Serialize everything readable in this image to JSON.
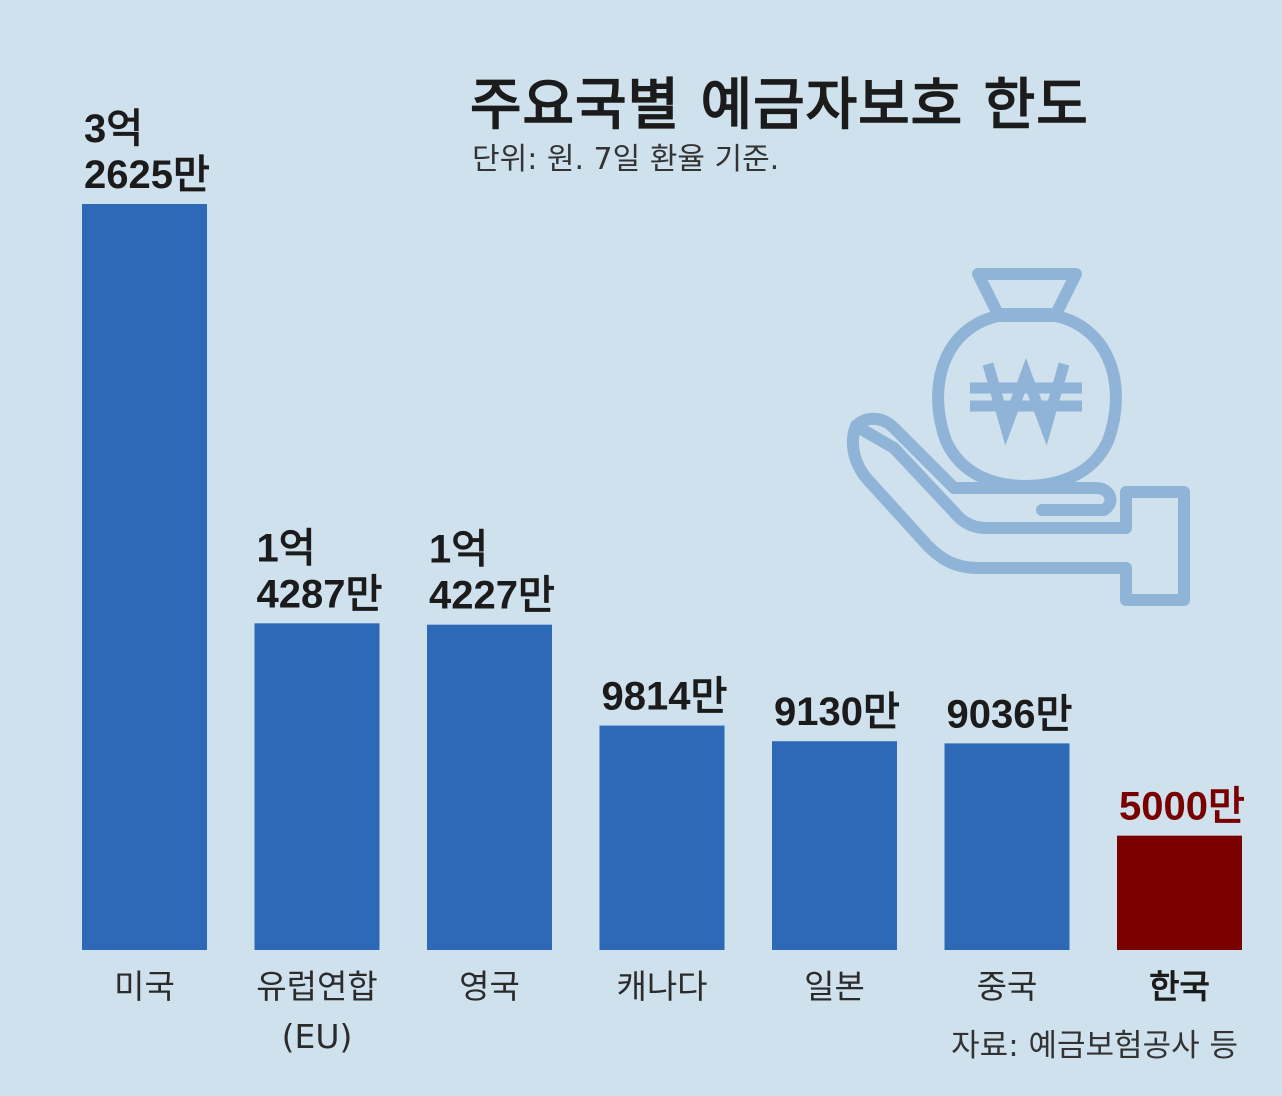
{
  "title": "주요국별 예금자보호 한도",
  "subtitle": "단위: 원. 7일 환율 기준.",
  "source": "자료: 예금보험공사 등",
  "icon": "money-bag-on-hand-icon",
  "colors": {
    "background": "#cfe1ed",
    "bar": "#2d69b7",
    "highlight_bar": "#7a0000",
    "highlight_text": "#7a0000",
    "icon": "#8fb4d8"
  },
  "chart_data": {
    "type": "bar",
    "title": "주요국별 예금자보호 한도",
    "subtitle": "단위: 원. 7일 환율 기준.",
    "unit": "원",
    "categories": [
      [
        "미국"
      ],
      [
        "유럽연합",
        "(EU)"
      ],
      [
        "영국"
      ],
      [
        "캐나다"
      ],
      [
        "일본"
      ],
      [
        "중국"
      ],
      [
        "한국"
      ]
    ],
    "values": [
      326250000,
      142870000,
      142270000,
      98140000,
      91300000,
      90360000,
      50000000
    ],
    "value_labels": [
      [
        "3억",
        "2625만"
      ],
      [
        "1억",
        "4287만"
      ],
      [
        "1억",
        "4227만"
      ],
      [
        "9814만"
      ],
      [
        "9130만"
      ],
      [
        "9036만"
      ],
      [
        "5000만"
      ]
    ],
    "highlight_index": 6,
    "ylim": [
      0,
      326250000
    ],
    "grid": false,
    "legend": "none"
  }
}
